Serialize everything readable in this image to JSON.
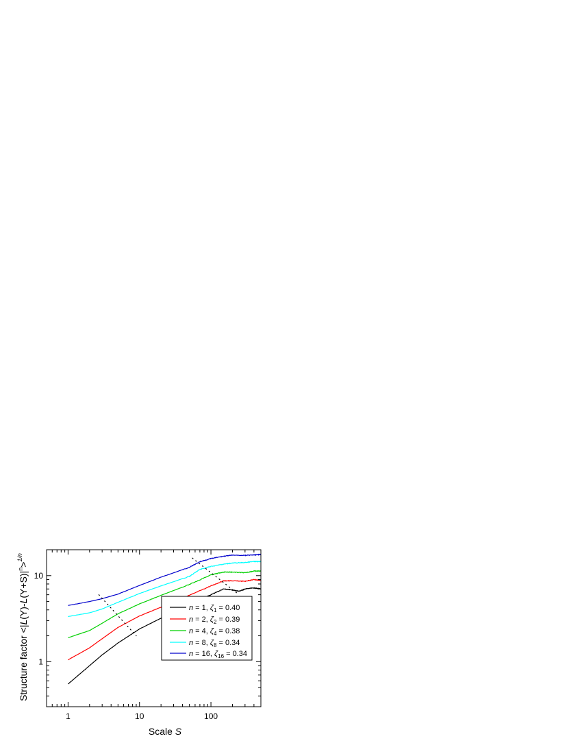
{
  "chart_data": {
    "type": "line",
    "xscale": "log",
    "yscale": "log",
    "xlim": [
      0.5,
      500
    ],
    "ylim": [
      0.3,
      20
    ],
    "xticks": [
      {
        "value": 1,
        "label": "1"
      },
      {
        "value": 10,
        "label": "10"
      },
      {
        "value": 100,
        "label": "100"
      }
    ],
    "yticks": [
      {
        "value": 1,
        "label": "1"
      },
      {
        "value": 10,
        "label": "10"
      }
    ],
    "xlabel": {
      "prefix": "Scale ",
      "var": "S"
    },
    "ylabel": {
      "prefix": "Structure factor <|",
      "L1": "L",
      "m1": "(Y)-",
      "L2": "L",
      "m2": "(Y+S)|",
      "sup_n": "n",
      "m3": ">",
      "sup_exp": "1/n"
    },
    "grid": false,
    "legend_position": "bottom-right",
    "series": [
      {
        "color": "#000000",
        "legend": {
          "var": "n",
          "eq": " = 1,  ",
          "greek": "ζ",
          "sub": "1",
          "val": " = 0.40"
        },
        "x": [
          1,
          2,
          3,
          5,
          10,
          20,
          50,
          100,
          150,
          200,
          250,
          300,
          400,
          500
        ],
        "y": [
          0.55,
          0.9,
          1.2,
          1.65,
          2.4,
          3.2,
          4.6,
          6.0,
          7.0,
          6.8,
          6.6,
          7.0,
          7.2,
          7.0
        ]
      },
      {
        "color": "#ff0000",
        "legend": {
          "var": "n",
          "eq": " = 2,  ",
          "greek": "ζ",
          "sub": "2",
          "val": " = 0.39"
        },
        "x": [
          1,
          2,
          3,
          5,
          10,
          20,
          50,
          100,
          150,
          200,
          300,
          400,
          500
        ],
        "y": [
          1.05,
          1.45,
          1.85,
          2.5,
          3.4,
          4.3,
          5.9,
          7.6,
          8.7,
          8.7,
          8.6,
          9.0,
          8.8
        ]
      },
      {
        "color": "#00d000",
        "legend": {
          "var": "n",
          "eq": " = 4,  ",
          "greek": "ζ",
          "sub": "4",
          "val": " = 0.38"
        },
        "x": [
          1,
          2,
          3,
          5,
          10,
          20,
          50,
          100,
          150,
          200,
          300,
          400,
          500
        ],
        "y": [
          1.9,
          2.3,
          2.8,
          3.6,
          4.7,
          5.9,
          7.9,
          10.2,
          11.0,
          11.0,
          10.8,
          11.3,
          11.3
        ]
      },
      {
        "color": "#00ffff",
        "legend": {
          "var": "n",
          "eq": " = 8,  ",
          "greek": "ζ",
          "sub": "8",
          "val": " = 0.34"
        },
        "x": [
          1,
          2,
          3,
          5,
          10,
          20,
          50,
          70,
          100,
          150,
          200,
          300,
          400,
          500
        ],
        "y": [
          3.35,
          3.7,
          4.1,
          4.9,
          6.2,
          7.6,
          9.8,
          11.8,
          12.8,
          13.6,
          14.0,
          14.2,
          14.6,
          14.6
        ]
      },
      {
        "color": "#0000cc",
        "legend": {
          "var": "n",
          "eq": " = 16, ",
          "greek": "ζ",
          "sub": "16",
          "val": " = 0.34"
        },
        "x": [
          1,
          2,
          3,
          5,
          10,
          20,
          50,
          70,
          100,
          150,
          200,
          300,
          400,
          500
        ],
        "y": [
          4.5,
          5.0,
          5.4,
          6.1,
          7.7,
          9.6,
          12.5,
          14.5,
          15.8,
          16.8,
          17.3,
          17.2,
          17.4,
          17.6
        ]
      }
    ],
    "guide_lines": [
      {
        "style": "dotted",
        "color": "#000000",
        "x": [
          2.7,
          9.0
        ],
        "y": [
          6.0,
          2.0
        ]
      },
      {
        "style": "dotted",
        "color": "#000000",
        "x": [
          55,
          230
        ],
        "y": [
          16.0,
          6.3
        ]
      }
    ]
  }
}
